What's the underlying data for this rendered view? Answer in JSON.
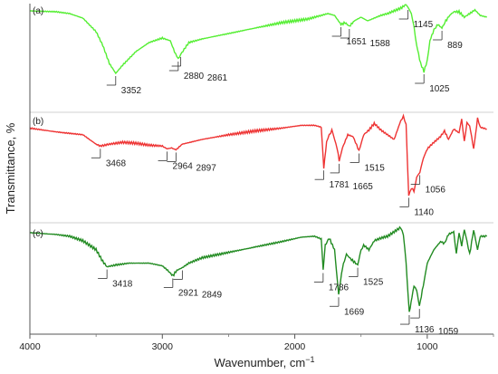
{
  "chart_data": {
    "type": "line",
    "xlabel": "Wavenumber, cm",
    "xlabel_sup": "−1",
    "ylabel": "Transmittance, %",
    "xlim": [
      4000,
      500
    ],
    "x_reversed": true,
    "x_ticks": [
      4000,
      3000,
      2000,
      1000
    ],
    "x_tick_labels": [
      "4000",
      "3000",
      "2000",
      "1000"
    ],
    "y_ticks_shown": false,
    "stacked_panels": true,
    "panels": [
      {
        "label": "(a)",
        "color": "#55EE33",
        "x": [
          4000,
          3800,
          3700,
          3600,
          3500,
          3450,
          3400,
          3352,
          3300,
          3200,
          3100,
          3000,
          2940,
          2900,
          2880,
          2861,
          2800,
          2700,
          2500,
          2300,
          2100,
          1900,
          1800,
          1750,
          1700,
          1651,
          1620,
          1588,
          1550,
          1500,
          1450,
          1400,
          1350,
          1300,
          1250,
          1200,
          1160,
          1145,
          1120,
          1100,
          1080,
          1050,
          1025,
          1000,
          980,
          950,
          920,
          889,
          860,
          830,
          800,
          760,
          720,
          680,
          640,
          600,
          550
        ],
        "values": [
          0.93,
          0.92,
          0.9,
          0.85,
          0.7,
          0.55,
          0.35,
          0.24,
          0.33,
          0.48,
          0.58,
          0.63,
          0.6,
          0.45,
          0.4,
          0.45,
          0.58,
          0.62,
          0.68,
          0.74,
          0.8,
          0.84,
          0.88,
          0.9,
          0.88,
          0.78,
          0.8,
          0.76,
          0.82,
          0.86,
          0.82,
          0.85,
          0.88,
          0.9,
          0.93,
          0.96,
          1.0,
          0.97,
          0.9,
          0.75,
          0.55,
          0.35,
          0.26,
          0.38,
          0.6,
          0.72,
          0.78,
          0.74,
          0.82,
          0.88,
          0.92,
          0.92,
          0.86,
          0.9,
          0.94,
          0.88,
          0.86
        ],
        "peaks": [
          {
            "label": "3352",
            "x": 3352
          },
          {
            "label": "2880",
            "x": 2880
          },
          {
            "label": "2861",
            "x": 2861
          },
          {
            "label": "1651",
            "x": 1651
          },
          {
            "label": "1588",
            "x": 1588
          },
          {
            "label": "1145",
            "x": 1145
          },
          {
            "label": "1025",
            "x": 1025
          },
          {
            "label": "889",
            "x": 889
          }
        ]
      },
      {
        "label": "(b)",
        "color": "#EE3333",
        "x": [
          4000,
          3800,
          3600,
          3550,
          3500,
          3468,
          3400,
          3300,
          3200,
          3100,
          3000,
          2964,
          2930,
          2897,
          2850,
          2700,
          2500,
          2300,
          2100,
          1950,
          1850,
          1800,
          1781,
          1760,
          1740,
          1720,
          1700,
          1680,
          1665,
          1640,
          1600,
          1560,
          1515,
          1480,
          1440,
          1400,
          1350,
          1300,
          1250,
          1200,
          1180,
          1160,
          1140,
          1120,
          1100,
          1080,
          1056,
          1030,
          1000,
          950,
          900,
          870,
          840,
          800,
          760,
          740,
          720,
          700,
          680,
          650,
          620,
          600,
          550
        ],
        "values": [
          0.87,
          0.83,
          0.8,
          0.75,
          0.7,
          0.68,
          0.7,
          0.72,
          0.71,
          0.69,
          0.68,
          0.65,
          0.66,
          0.64,
          0.7,
          0.75,
          0.8,
          0.84,
          0.87,
          0.9,
          0.9,
          0.88,
          0.45,
          0.72,
          0.8,
          0.85,
          0.75,
          0.66,
          0.52,
          0.66,
          0.8,
          0.78,
          0.63,
          0.8,
          0.85,
          0.92,
          0.85,
          0.8,
          0.75,
          0.95,
          1.0,
          0.9,
          0.16,
          0.23,
          0.2,
          0.35,
          0.4,
          0.55,
          0.65,
          0.72,
          0.78,
          0.84,
          0.75,
          0.86,
          0.82,
          0.97,
          0.72,
          0.93,
          0.9,
          0.65,
          0.97,
          0.88,
          0.86
        ],
        "peaks": [
          {
            "label": "3468",
            "x": 3468
          },
          {
            "label": "2964",
            "x": 2964
          },
          {
            "label": "2897",
            "x": 2897
          },
          {
            "label": "1781",
            "x": 1781
          },
          {
            "label": "1665",
            "x": 1665
          },
          {
            "label": "1515",
            "x": 1515
          },
          {
            "label": "1140",
            "x": 1140
          },
          {
            "label": "1056",
            "x": 1056
          }
        ]
      },
      {
        "label": "(c)",
        "color": "#228B22",
        "x": [
          4000,
          3800,
          3700,
          3600,
          3500,
          3450,
          3418,
          3350,
          3250,
          3100,
          3000,
          2960,
          2921,
          2890,
          2849,
          2800,
          2700,
          2500,
          2300,
          2100,
          1950,
          1850,
          1800,
          1786,
          1770,
          1740,
          1700,
          1669,
          1640,
          1610,
          1580,
          1525,
          1500,
          1480,
          1440,
          1400,
          1350,
          1300,
          1250,
          1200,
          1180,
          1160,
          1136,
          1115,
          1100,
          1080,
          1059,
          1030,
          1000,
          950,
          900,
          870,
          840,
          800,
          780,
          760,
          740,
          720,
          700,
          680,
          650,
          620,
          600,
          550
        ],
        "values": [
          0.94,
          0.92,
          0.9,
          0.85,
          0.75,
          0.62,
          0.56,
          0.58,
          0.6,
          0.6,
          0.57,
          0.52,
          0.46,
          0.52,
          0.55,
          0.6,
          0.66,
          0.72,
          0.78,
          0.84,
          0.89,
          0.9,
          0.87,
          0.52,
          0.8,
          0.88,
          0.75,
          0.25,
          0.55,
          0.7,
          0.65,
          0.58,
          0.75,
          0.8,
          0.75,
          0.85,
          0.88,
          0.9,
          0.95,
          1.0,
          0.92,
          0.6,
          0.05,
          0.22,
          0.35,
          0.3,
          0.12,
          0.35,
          0.6,
          0.75,
          0.84,
          0.82,
          0.92,
          0.95,
          0.7,
          0.94,
          0.8,
          0.97,
          0.85,
          0.7,
          0.97,
          0.75,
          0.9,
          0.9
        ],
        "peaks": [
          {
            "label": "3418",
            "x": 3418
          },
          {
            "label": "2921",
            "x": 2921
          },
          {
            "label": "2849",
            "x": 2849
          },
          {
            "label": "1786",
            "x": 1786
          },
          {
            "label": "1669",
            "x": 1669
          },
          {
            "label": "1525",
            "x": 1525
          },
          {
            "label": "1136",
            "x": 1136
          },
          {
            "label": "1059",
            "x": 1059
          }
        ]
      }
    ]
  }
}
